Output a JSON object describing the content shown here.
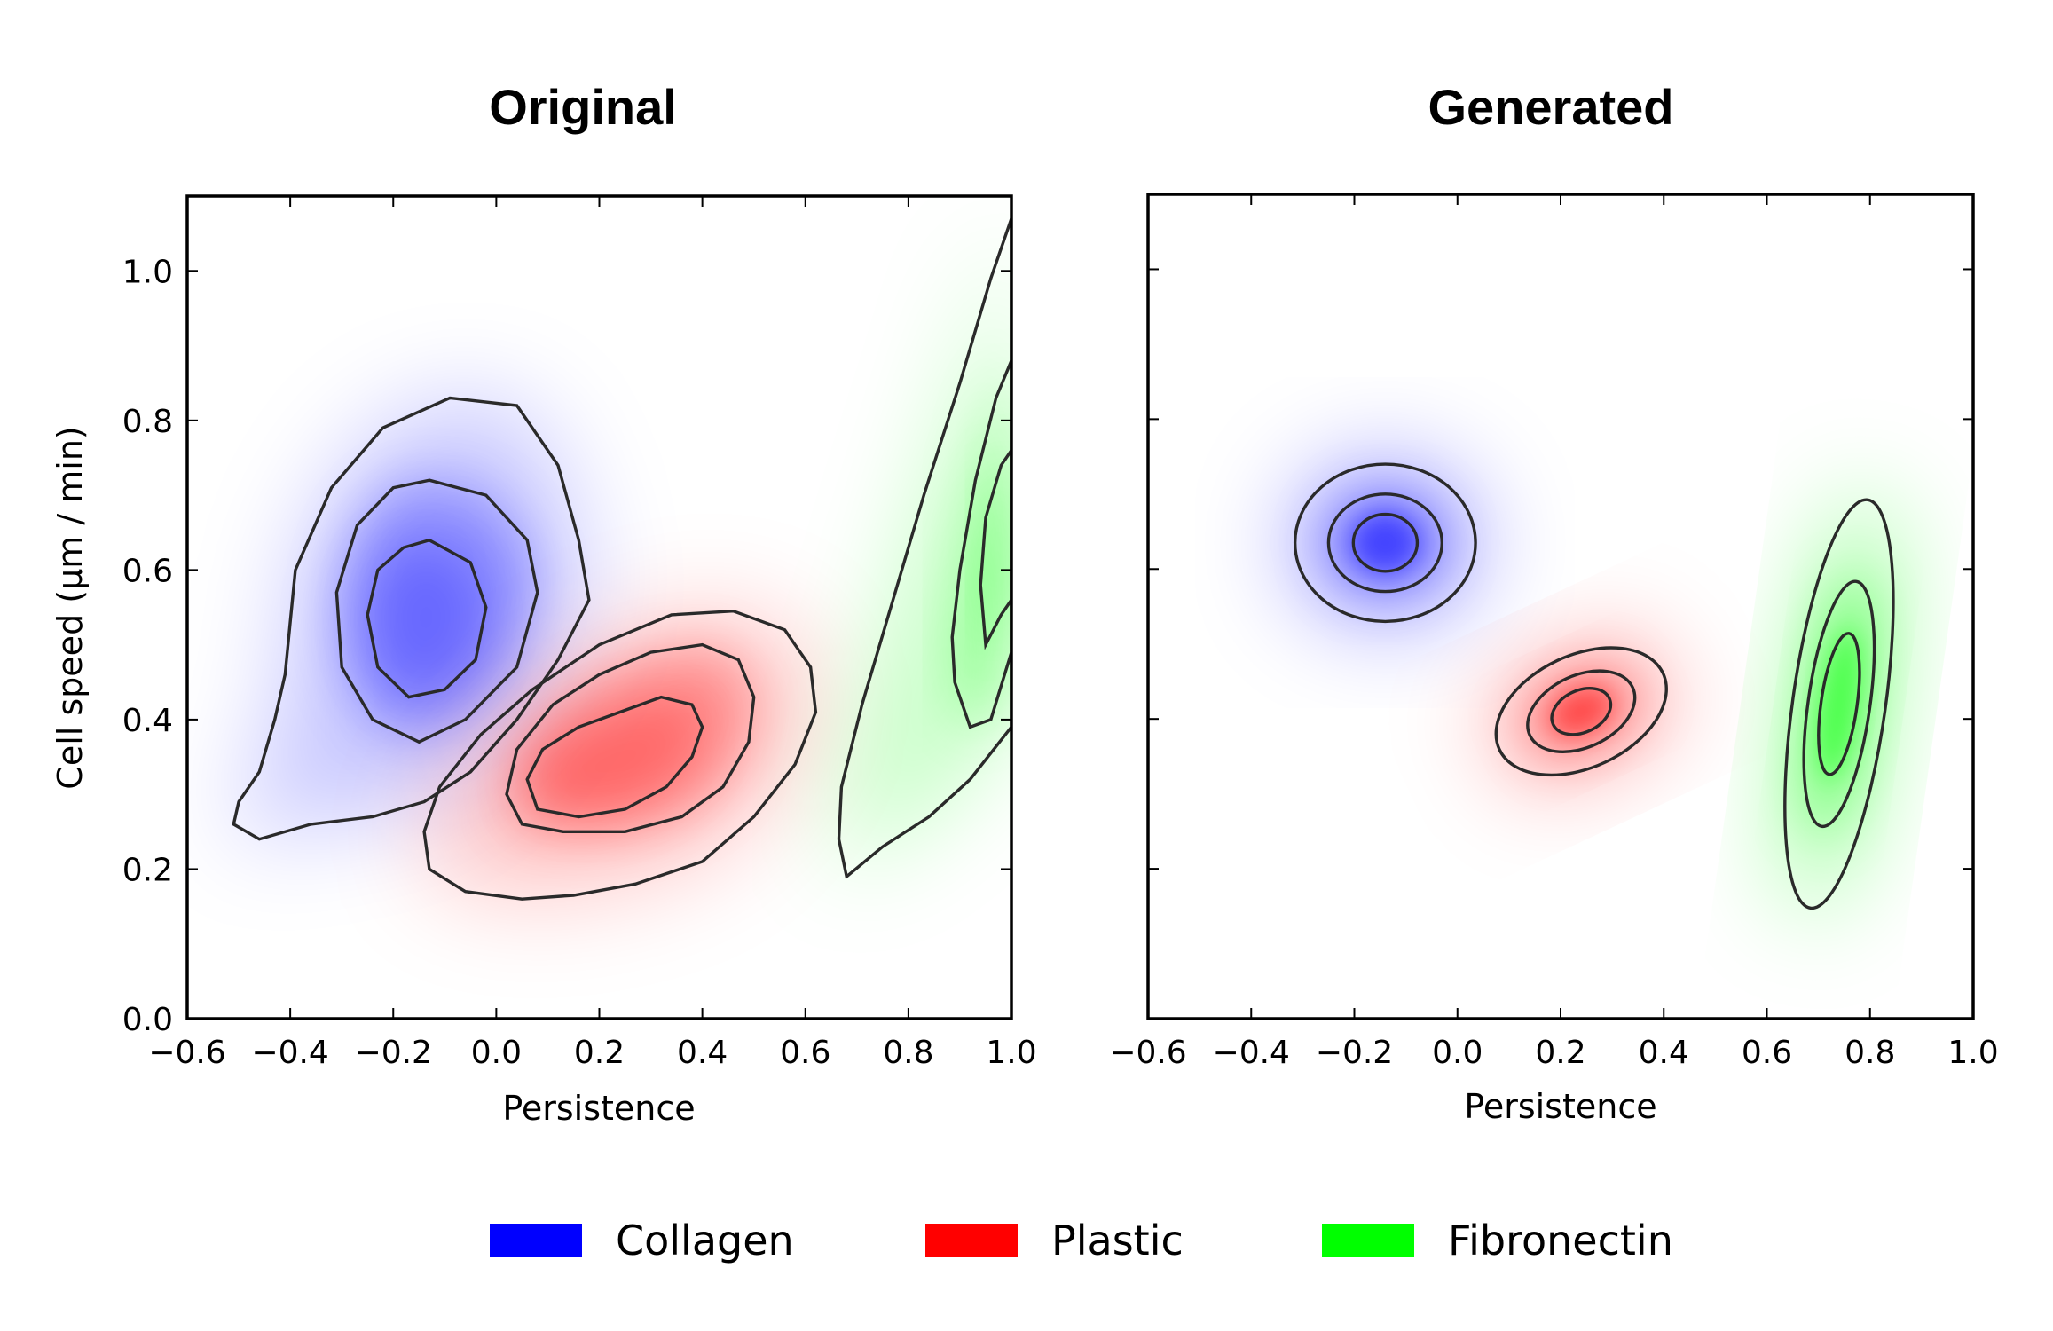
{
  "chart_data": [
    {
      "type": "density-contour",
      "title": "Original",
      "xlabel": "Persistence",
      "ylabel": "Cell speed (µm / min)",
      "xlim": [
        -0.6,
        1.0
      ],
      "ylim": [
        0.0,
        1.1
      ],
      "xticks": [
        "−0.6",
        "−0.4",
        "−0.2",
        "0.0",
        "0.2",
        "0.4",
        "0.6",
        "0.8",
        "1.0"
      ],
      "xtick_values": [
        -0.6,
        -0.4,
        -0.2,
        0.0,
        0.2,
        0.4,
        0.6,
        0.8,
        1.0
      ],
      "yticks": [
        "0.0",
        "0.2",
        "0.4",
        "0.6",
        "0.8",
        "1.0"
      ],
      "ytick_values": [
        0.0,
        0.2,
        0.4,
        0.6,
        0.8,
        1.0
      ],
      "show_ytick_labels": true,
      "series": [
        {
          "name": "Collagen",
          "color": "#0000ff",
          "contours": [
            [
              [
                -0.51,
                0.26
              ],
              [
                -0.46,
                0.24
              ],
              [
                -0.36,
                0.26
              ],
              [
                -0.24,
                0.27
              ],
              [
                -0.14,
                0.29
              ],
              [
                -0.05,
                0.33
              ],
              [
                0.04,
                0.4
              ],
              [
                0.12,
                0.48
              ],
              [
                0.18,
                0.56
              ],
              [
                0.16,
                0.64
              ],
              [
                0.12,
                0.74
              ],
              [
                0.04,
                0.82
              ],
              [
                -0.09,
                0.83
              ],
              [
                -0.22,
                0.79
              ],
              [
                -0.32,
                0.71
              ],
              [
                -0.39,
                0.6
              ],
              [
                -0.41,
                0.46
              ],
              [
                -0.43,
                0.4
              ],
              [
                -0.46,
                0.33
              ],
              [
                -0.5,
                0.29
              ]
            ],
            [
              [
                -0.13,
                0.72
              ],
              [
                -0.02,
                0.7
              ],
              [
                0.06,
                0.64
              ],
              [
                0.08,
                0.57
              ],
              [
                0.04,
                0.47
              ],
              [
                -0.06,
                0.4
              ],
              [
                -0.15,
                0.37
              ],
              [
                -0.24,
                0.4
              ],
              [
                -0.3,
                0.47
              ],
              [
                -0.31,
                0.57
              ],
              [
                -0.27,
                0.66
              ],
              [
                -0.2,
                0.71
              ]
            ],
            [
              [
                -0.13,
                0.64
              ],
              [
                -0.05,
                0.61
              ],
              [
                -0.02,
                0.55
              ],
              [
                -0.04,
                0.48
              ],
              [
                -0.1,
                0.44
              ],
              [
                -0.17,
                0.43
              ],
              [
                -0.23,
                0.47
              ],
              [
                -0.25,
                0.54
              ],
              [
                -0.23,
                0.6
              ],
              [
                -0.18,
                0.63
              ]
            ]
          ]
        },
        {
          "name": "Plastic",
          "color": "#ff0000",
          "contours": [
            [
              [
                0.05,
                0.16
              ],
              [
                -0.06,
                0.17
              ],
              [
                -0.13,
                0.2
              ],
              [
                -0.14,
                0.25
              ],
              [
                -0.11,
                0.31
              ],
              [
                -0.03,
                0.38
              ],
              [
                0.07,
                0.44
              ],
              [
                0.2,
                0.5
              ],
              [
                0.34,
                0.54
              ],
              [
                0.46,
                0.545
              ],
              [
                0.56,
                0.52
              ],
              [
                0.61,
                0.47
              ],
              [
                0.62,
                0.41
              ],
              [
                0.58,
                0.34
              ],
              [
                0.5,
                0.27
              ],
              [
                0.4,
                0.21
              ],
              [
                0.27,
                0.18
              ],
              [
                0.15,
                0.165
              ]
            ],
            [
              [
                0.13,
                0.25
              ],
              [
                0.05,
                0.26
              ],
              [
                0.02,
                0.3
              ],
              [
                0.04,
                0.36
              ],
              [
                0.11,
                0.42
              ],
              [
                0.2,
                0.46
              ],
              [
                0.3,
                0.49
              ],
              [
                0.4,
                0.5
              ],
              [
                0.47,
                0.48
              ],
              [
                0.5,
                0.43
              ],
              [
                0.49,
                0.37
              ],
              [
                0.44,
                0.31
              ],
              [
                0.36,
                0.27
              ],
              [
                0.25,
                0.25
              ]
            ],
            [
              [
                0.16,
                0.27
              ],
              [
                0.08,
                0.28
              ],
              [
                0.06,
                0.32
              ],
              [
                0.09,
                0.36
              ],
              [
                0.16,
                0.39
              ],
              [
                0.24,
                0.41
              ],
              [
                0.32,
                0.43
              ],
              [
                0.38,
                0.42
              ],
              [
                0.4,
                0.39
              ],
              [
                0.38,
                0.35
              ],
              [
                0.33,
                0.31
              ],
              [
                0.25,
                0.28
              ]
            ]
          ]
        },
        {
          "name": "Fibronectin",
          "color": "#00ff00",
          "contours": [
            [
              [
                0.68,
                0.19
              ],
              [
                0.75,
                0.23
              ],
              [
                0.84,
                0.27
              ],
              [
                0.92,
                0.32
              ],
              [
                1.0,
                0.39
              ],
              [
                1.0,
                1.07
              ],
              [
                0.96,
                0.99
              ],
              [
                0.9,
                0.85
              ],
              [
                0.83,
                0.7
              ],
              [
                0.77,
                0.56
              ],
              [
                0.71,
                0.42
              ],
              [
                0.67,
                0.31
              ],
              [
                0.665,
                0.24
              ]
            ],
            [
              [
                0.89,
                0.45
              ],
              [
                0.92,
                0.39
              ],
              [
                0.96,
                0.4
              ],
              [
                1.0,
                0.49
              ],
              [
                1.0,
                0.88
              ],
              [
                0.97,
                0.83
              ],
              [
                0.93,
                0.72
              ],
              [
                0.9,
                0.6
              ],
              [
                0.885,
                0.51
              ]
            ],
            [
              [
                0.95,
                0.5
              ],
              [
                0.98,
                0.54
              ],
              [
                1.0,
                0.56
              ],
              [
                1.0,
                0.76
              ],
              [
                0.98,
                0.74
              ],
              [
                0.95,
                0.67
              ],
              [
                0.94,
                0.58
              ]
            ]
          ]
        }
      ]
    },
    {
      "type": "density-contour",
      "title": "Generated",
      "xlabel": "Persistence",
      "ylabel": "",
      "xlim": [
        -0.6,
        1.0
      ],
      "ylim": [
        0.0,
        1.1
      ],
      "xticks": [
        "−0.6",
        "−0.4",
        "−0.2",
        "0.0",
        "0.2",
        "0.4",
        "0.6",
        "0.8",
        "1.0"
      ],
      "xtick_values": [
        -0.6,
        -0.4,
        -0.2,
        0.0,
        0.2,
        0.4,
        0.6,
        0.8,
        1.0
      ],
      "yticks": [],
      "ytick_values": [
        0.0,
        0.2,
        0.4,
        0.6,
        0.8,
        1.0
      ],
      "show_ytick_labels": false,
      "series": [
        {
          "name": "Collagen",
          "color": "#0000ff",
          "ellipses": [
            {
              "cx": -0.14,
              "cy": 0.635,
              "rx": 0.175,
              "ry": 0.105,
              "angle": 0
            },
            {
              "cx": -0.14,
              "cy": 0.635,
              "rx": 0.11,
              "ry": 0.065,
              "angle": 0
            },
            {
              "cx": -0.14,
              "cy": 0.635,
              "rx": 0.062,
              "ry": 0.038,
              "angle": 0
            }
          ]
        },
        {
          "name": "Plastic",
          "color": "#ff0000",
          "ellipses": [
            {
              "cx": 0.24,
              "cy": 0.41,
              "rx": 0.175,
              "ry": 0.075,
              "angle": -25
            },
            {
              "cx": 0.24,
              "cy": 0.41,
              "rx": 0.11,
              "ry": 0.048,
              "angle": -25
            },
            {
              "cx": 0.24,
              "cy": 0.41,
              "rx": 0.06,
              "ry": 0.028,
              "angle": -25
            }
          ]
        },
        {
          "name": "Fibronectin",
          "color": "#00ff00",
          "ellipses": [
            {
              "cx": 0.74,
              "cy": 0.42,
              "rx": 0.09,
              "ry": 0.275,
              "angle": 8
            },
            {
              "cx": 0.74,
              "cy": 0.42,
              "rx": 0.06,
              "ry": 0.165,
              "angle": 8
            },
            {
              "cx": 0.74,
              "cy": 0.42,
              "rx": 0.035,
              "ry": 0.095,
              "angle": 8
            }
          ]
        }
      ]
    }
  ],
  "legend": [
    {
      "label": "Collagen",
      "color": "#0000ff"
    },
    {
      "label": "Plastic",
      "color": "#ff0000"
    },
    {
      "label": "Fibronectin",
      "color": "#00ff00"
    }
  ]
}
